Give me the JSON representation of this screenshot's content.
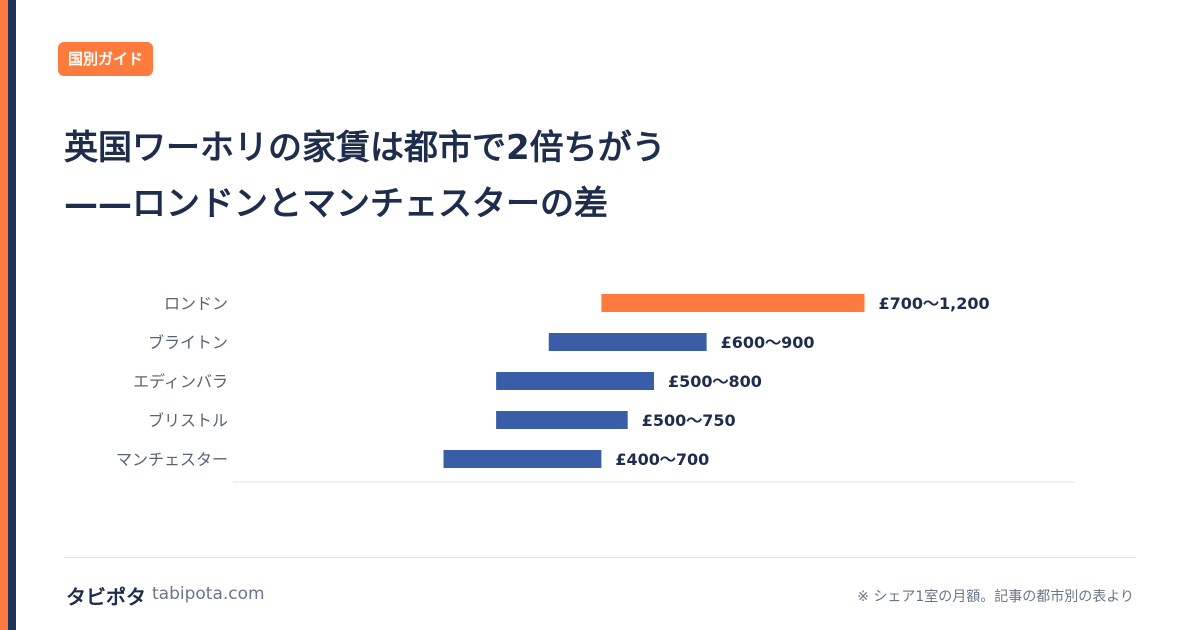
{
  "badge": "国別ガイド",
  "title": {
    "line1": "英国ワーホリの家賃は都市で2倍ちがう",
    "line2": "——ロンドンとマンチェスターの差"
  },
  "colors": {
    "highlight": "#ff7a3d",
    "bar": "#3a5da8",
    "label": "#5a6275",
    "value": "#1f2d4d"
  },
  "chart_data": {
    "type": "bar",
    "orientation": "horizontal",
    "style": "range",
    "unit": "£",
    "categories": [
      "ロンドン",
      "ブライトン",
      "エディンバラ",
      "ブリストル",
      "マンチェスター"
    ],
    "ranges": [
      [
        700,
        1200
      ],
      [
        600,
        900
      ],
      [
        500,
        800
      ],
      [
        500,
        750
      ],
      [
        400,
        700
      ]
    ],
    "value_labels": [
      "£700〜1,200",
      "£600〜900",
      "£500〜800",
      "£500〜750",
      "£400〜700"
    ],
    "highlight_index": 0,
    "xlim": [
      0,
      1600
    ],
    "grid": false,
    "legend": "none"
  },
  "footer": {
    "brand": "タビポタ",
    "domain": "tabipota.com",
    "note": "※ シェア1室の月額。記事の都市別の表より"
  }
}
